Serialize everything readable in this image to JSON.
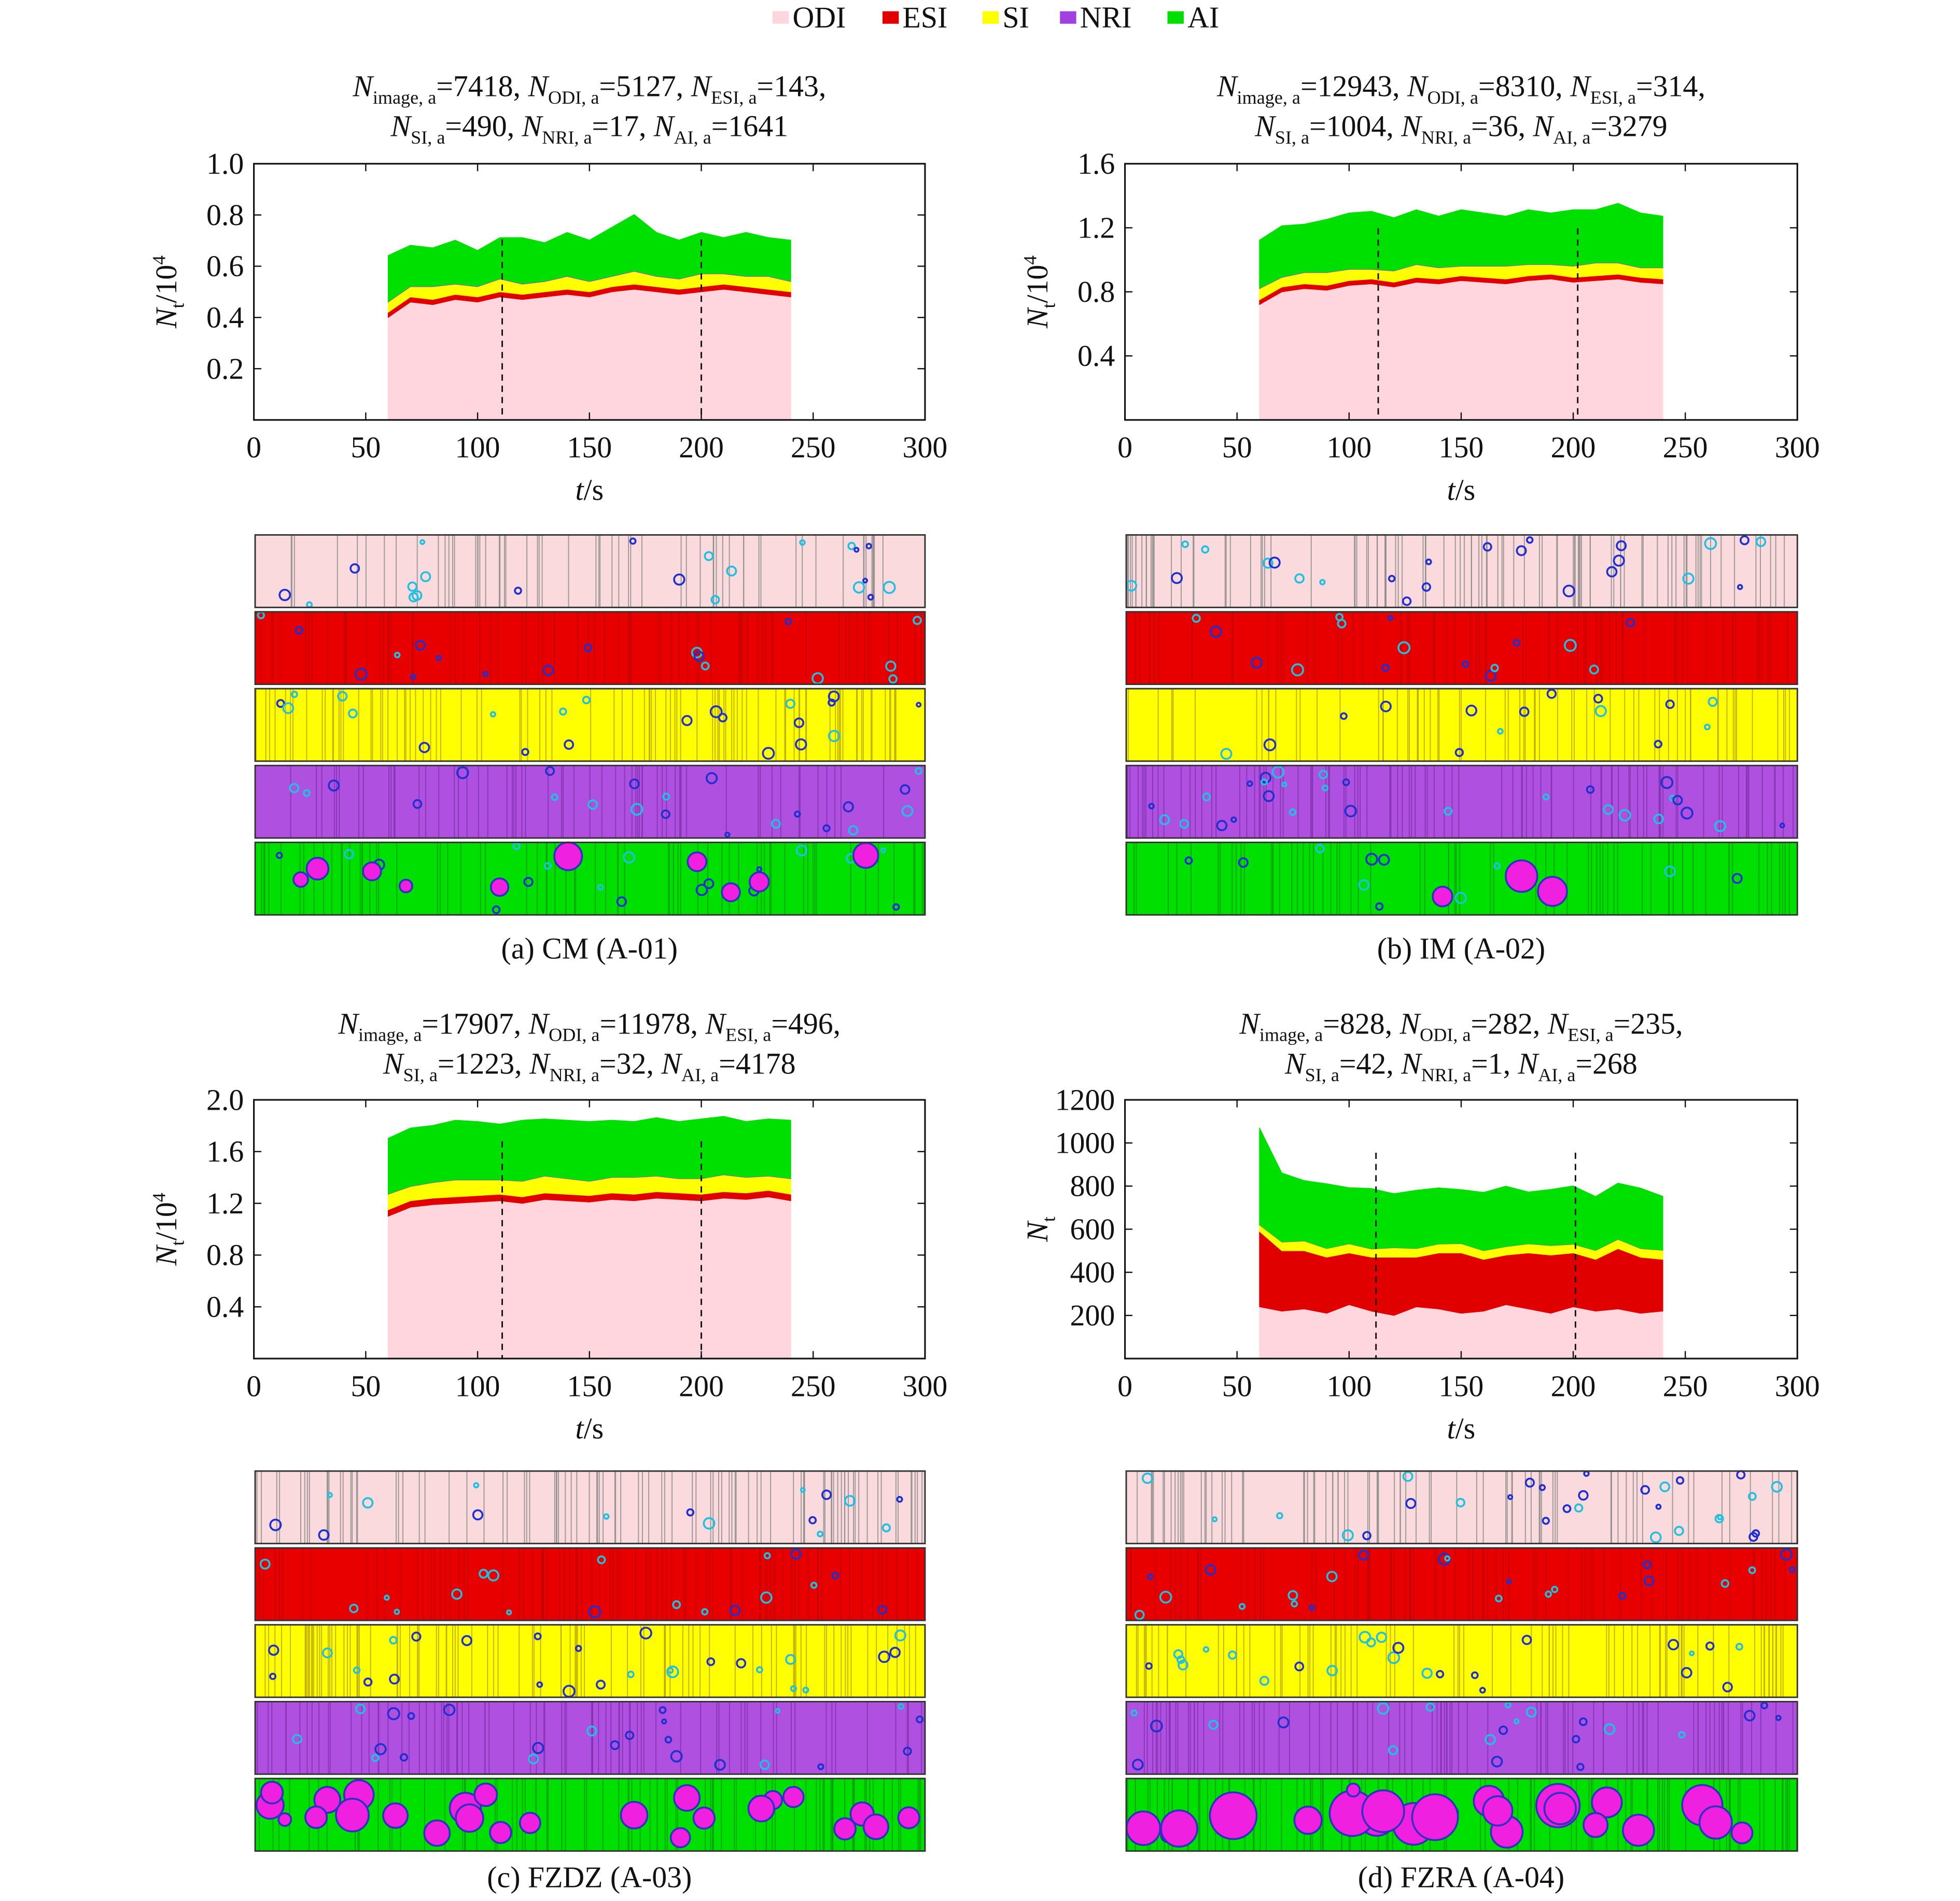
{
  "chart_data": [
    {
      "type": "stacked_area",
      "caption": "(a) CM (A-01)",
      "title_lines": [
        [
          {
            "base": "N",
            "sub": "image, a",
            "text": "=7418,"
          },
          {
            "base": "N",
            "sub": "ODI, a",
            "text": "=5127,"
          },
          {
            "base": "N",
            "sub": "ESI, a",
            "text": "=143,"
          }
        ],
        [
          {
            "base": "N",
            "sub": "SI, a",
            "text": "=490,"
          },
          {
            "base": "N",
            "sub": "NRI, a",
            "text": "=17,"
          },
          {
            "base": "N",
            "sub": "AI, a",
            "text": "=1641"
          }
        ]
      ],
      "y_label": {
        "base": "N",
        "sub": "t",
        "text": "/10",
        "sup": "4"
      },
      "x_label": {
        "base": "t",
        "text": "/s"
      },
      "xlim": [
        0,
        300
      ],
      "xticks": [
        0,
        50,
        100,
        150,
        200,
        250,
        300
      ],
      "ylim": [
        0,
        1
      ],
      "yticks": [
        0.2,
        0.4,
        0.6,
        0.8,
        {
          "value": 1,
          "label": "1.0"
        }
      ],
      "vlines": [
        111,
        200
      ],
      "x": [
        60,
        70,
        80,
        90,
        100,
        110,
        120,
        130,
        140,
        150,
        160,
        170,
        180,
        190,
        200,
        210,
        220,
        230,
        240
      ],
      "series": [
        {
          "name": "ODI",
          "color": "#ffd6de",
          "values": [
            0.4,
            0.46,
            0.45,
            0.47,
            0.46,
            0.48,
            0.47,
            0.48,
            0.49,
            0.48,
            0.5,
            0.51,
            0.5,
            0.49,
            0.5,
            0.51,
            0.5,
            0.49,
            0.48
          ]
        },
        {
          "name": "ESI",
          "color": "#e00000",
          "values": [
            0.02,
            0.02,
            0.02,
            0.02,
            0.02,
            0.02,
            0.02,
            0.02,
            0.02,
            0.02,
            0.02,
            0.02,
            0.02,
            0.02,
            0.02,
            0.02,
            0.02,
            0.02,
            0.02
          ]
        },
        {
          "name": "SI",
          "color": "#ffff00",
          "values": [
            0.04,
            0.04,
            0.05,
            0.04,
            0.04,
            0.05,
            0.04,
            0.04,
            0.05,
            0.04,
            0.04,
            0.05,
            0.04,
            0.04,
            0.05,
            0.04,
            0.04,
            0.05,
            0.04
          ]
        },
        {
          "name": "NRI",
          "color": "#a040e0",
          "values": [
            0.002,
            0.002,
            0.002,
            0.002,
            0.002,
            0.002,
            0.002,
            0.002,
            0.002,
            0.002,
            0.002,
            0.002,
            0.002,
            0.002,
            0.002,
            0.002,
            0.002,
            0.002,
            0.002
          ]
        },
        {
          "name": "AI",
          "color": "#00e000",
          "values": [
            0.18,
            0.16,
            0.15,
            0.17,
            0.14,
            0.16,
            0.18,
            0.15,
            0.17,
            0.16,
            0.19,
            0.22,
            0.17,
            0.15,
            0.16,
            0.14,
            0.17,
            0.15,
            0.16
          ]
        }
      ]
    },
    {
      "type": "stacked_area",
      "caption": "(b) IM (A-02)",
      "title_lines": [
        [
          {
            "base": "N",
            "sub": "image, a",
            "text": "=12943,"
          },
          {
            "base": "N",
            "sub": "ODI, a",
            "text": "=8310,"
          },
          {
            "base": "N",
            "sub": "ESI, a",
            "text": "=314,"
          }
        ],
        [
          {
            "base": "N",
            "sub": "SI, a",
            "text": "=1004,"
          },
          {
            "base": "N",
            "sub": "NRI, a",
            "text": "=36,"
          },
          {
            "base": "N",
            "sub": "AI, a",
            "text": "=3279"
          }
        ]
      ],
      "y_label": {
        "base": "N",
        "sub": "t",
        "text": "/10",
        "sup": "4"
      },
      "x_label": {
        "base": "t",
        "text": "/s"
      },
      "xlim": [
        0,
        300
      ],
      "xticks": [
        0,
        50,
        100,
        150,
        200,
        250,
        300
      ],
      "ylim": [
        0,
        1.6
      ],
      "yticks": [
        0.4,
        0.8,
        1.2,
        1.6
      ],
      "vlines": [
        113,
        202
      ],
      "x": [
        60,
        70,
        80,
        90,
        100,
        110,
        120,
        130,
        140,
        150,
        160,
        170,
        180,
        190,
        200,
        210,
        220,
        230,
        240
      ],
      "series": [
        {
          "name": "ODI",
          "color": "#ffd6de",
          "values": [
            0.72,
            0.8,
            0.82,
            0.81,
            0.84,
            0.85,
            0.83,
            0.86,
            0.85,
            0.87,
            0.86,
            0.85,
            0.87,
            0.88,
            0.86,
            0.87,
            0.88,
            0.86,
            0.85
          ]
        },
        {
          "name": "ESI",
          "color": "#e00000",
          "values": [
            0.03,
            0.03,
            0.03,
            0.03,
            0.03,
            0.03,
            0.03,
            0.03,
            0.03,
            0.03,
            0.03,
            0.03,
            0.03,
            0.03,
            0.03,
            0.03,
            0.03,
            0.03,
            0.03
          ]
        },
        {
          "name": "SI",
          "color": "#ffff00",
          "values": [
            0.07,
            0.06,
            0.07,
            0.08,
            0.07,
            0.06,
            0.07,
            0.08,
            0.07,
            0.06,
            0.07,
            0.08,
            0.07,
            0.06,
            0.07,
            0.08,
            0.07,
            0.06,
            0.07
          ]
        },
        {
          "name": "NRI",
          "color": "#a040e0",
          "values": [
            0.003,
            0.003,
            0.003,
            0.003,
            0.003,
            0.003,
            0.003,
            0.003,
            0.003,
            0.003,
            0.003,
            0.003,
            0.003,
            0.003,
            0.003,
            0.003,
            0.003,
            0.003,
            0.003
          ]
        },
        {
          "name": "AI",
          "color": "#00e000",
          "values": [
            0.3,
            0.32,
            0.3,
            0.33,
            0.35,
            0.36,
            0.33,
            0.34,
            0.32,
            0.35,
            0.33,
            0.31,
            0.34,
            0.32,
            0.35,
            0.33,
            0.37,
            0.34,
            0.32
          ]
        }
      ]
    },
    {
      "type": "stacked_area",
      "caption": "(c) FZDZ (A-03)",
      "title_lines": [
        [
          {
            "base": "N",
            "sub": "image, a",
            "text": "=17907,"
          },
          {
            "base": "N",
            "sub": "ODI, a",
            "text": "=11978,"
          },
          {
            "base": "N",
            "sub": "ESI, a",
            "text": "=496,"
          }
        ],
        [
          {
            "base": "N",
            "sub": "SI, a",
            "text": "=1223,"
          },
          {
            "base": "N",
            "sub": "NRI, a",
            "text": "=32,"
          },
          {
            "base": "N",
            "sub": "AI, a",
            "text": "=4178"
          }
        ]
      ],
      "y_label": {
        "base": "N",
        "sub": "t",
        "text": "/10",
        "sup": "4"
      },
      "x_label": {
        "base": "t",
        "text": "/s"
      },
      "xlim": [
        0,
        300
      ],
      "xticks": [
        0,
        50,
        100,
        150,
        200,
        250,
        300
      ],
      "ylim": [
        0,
        2
      ],
      "yticks": [
        0.4,
        0.8,
        1.2,
        1.6,
        {
          "value": 2,
          "label": "2.0"
        }
      ],
      "vlines": [
        111,
        200
      ],
      "x": [
        60,
        70,
        80,
        90,
        100,
        110,
        120,
        130,
        140,
        150,
        160,
        170,
        180,
        190,
        200,
        210,
        220,
        230,
        240
      ],
      "series": [
        {
          "name": "ODI",
          "color": "#ffd6de",
          "values": [
            1.1,
            1.17,
            1.19,
            1.2,
            1.21,
            1.22,
            1.2,
            1.23,
            1.22,
            1.21,
            1.23,
            1.22,
            1.24,
            1.23,
            1.22,
            1.24,
            1.23,
            1.25,
            1.22
          ]
        },
        {
          "name": "ESI",
          "color": "#e00000",
          "values": [
            0.05,
            0.05,
            0.05,
            0.05,
            0.05,
            0.05,
            0.05,
            0.05,
            0.05,
            0.05,
            0.05,
            0.05,
            0.05,
            0.05,
            0.05,
            0.05,
            0.05,
            0.05,
            0.05
          ]
        },
        {
          "name": "SI",
          "color": "#ffff00",
          "values": [
            0.12,
            0.11,
            0.12,
            0.13,
            0.12,
            0.11,
            0.12,
            0.13,
            0.12,
            0.11,
            0.12,
            0.13,
            0.12,
            0.11,
            0.12,
            0.13,
            0.12,
            0.11,
            0.12
          ]
        },
        {
          "name": "NRI",
          "color": "#a040e0",
          "values": [
            0.003,
            0.003,
            0.003,
            0.003,
            0.003,
            0.003,
            0.003,
            0.003,
            0.003,
            0.003,
            0.003,
            0.003,
            0.003,
            0.003,
            0.003,
            0.003,
            0.003,
            0.003,
            0.003
          ]
        },
        {
          "name": "AI",
          "color": "#00e000",
          "values": [
            0.43,
            0.45,
            0.44,
            0.46,
            0.45,
            0.43,
            0.47,
            0.44,
            0.45,
            0.46,
            0.44,
            0.43,
            0.45,
            0.44,
            0.46,
            0.45,
            0.43,
            0.44,
            0.45
          ]
        }
      ]
    },
    {
      "type": "stacked_area",
      "caption": "(d) FZRA (A-04)",
      "title_lines": [
        [
          {
            "base": "N",
            "sub": "image, a",
            "text": "=828,"
          },
          {
            "base": "N",
            "sub": "ODI, a",
            "text": "=282,"
          },
          {
            "base": "N",
            "sub": "ESI, a",
            "text": "=235,"
          }
        ],
        [
          {
            "base": "N",
            "sub": "SI, a",
            "text": "=42,"
          },
          {
            "base": "N",
            "sub": "NRI, a",
            "text": "=1,"
          },
          {
            "base": "N",
            "sub": "AI, a",
            "text": "=268"
          }
        ]
      ],
      "y_label": {
        "base": "N",
        "sub": "t"
      },
      "x_label": {
        "base": "t",
        "text": "/s"
      },
      "xlim": [
        0,
        300
      ],
      "xticks": [
        0,
        50,
        100,
        150,
        200,
        250,
        300
      ],
      "ylim": [
        0,
        1200
      ],
      "yticks": [
        200,
        400,
        600,
        800,
        1000,
        1200
      ],
      "vlines": [
        112,
        201
      ],
      "x": [
        60,
        70,
        80,
        90,
        100,
        110,
        120,
        130,
        140,
        150,
        160,
        170,
        180,
        190,
        200,
        210,
        220,
        230,
        240
      ],
      "series": [
        {
          "name": "ODI",
          "color": "#ffd6de",
          "values": [
            240,
            220,
            230,
            210,
            250,
            220,
            200,
            240,
            230,
            210,
            220,
            250,
            230,
            210,
            240,
            220,
            230,
            210,
            220
          ]
        },
        {
          "name": "ESI",
          "color": "#e00000",
          "values": [
            350,
            280,
            270,
            260,
            240,
            250,
            270,
            230,
            260,
            280,
            240,
            230,
            260,
            270,
            250,
            240,
            280,
            260,
            240
          ]
        },
        {
          "name": "SI",
          "color": "#ffff00",
          "values": [
            30,
            40,
            45,
            40,
            42,
            38,
            44,
            40,
            41,
            43,
            40,
            39,
            42,
            44,
            40,
            41,
            43,
            40,
            42
          ]
        },
        {
          "name": "NRI",
          "color": "#a040e0",
          "values": [
            1,
            1,
            1,
            1,
            1,
            1,
            1,
            1,
            1,
            1,
            1,
            1,
            1,
            1,
            1,
            1,
            1,
            1,
            1
          ]
        },
        {
          "name": "AI",
          "color": "#00e000",
          "values": [
            450,
            320,
            280,
            300,
            260,
            280,
            250,
            270,
            260,
            250,
            270,
            280,
            240,
            260,
            270,
            250,
            260,
            280,
            250
          ]
        }
      ]
    }
  ]
}
